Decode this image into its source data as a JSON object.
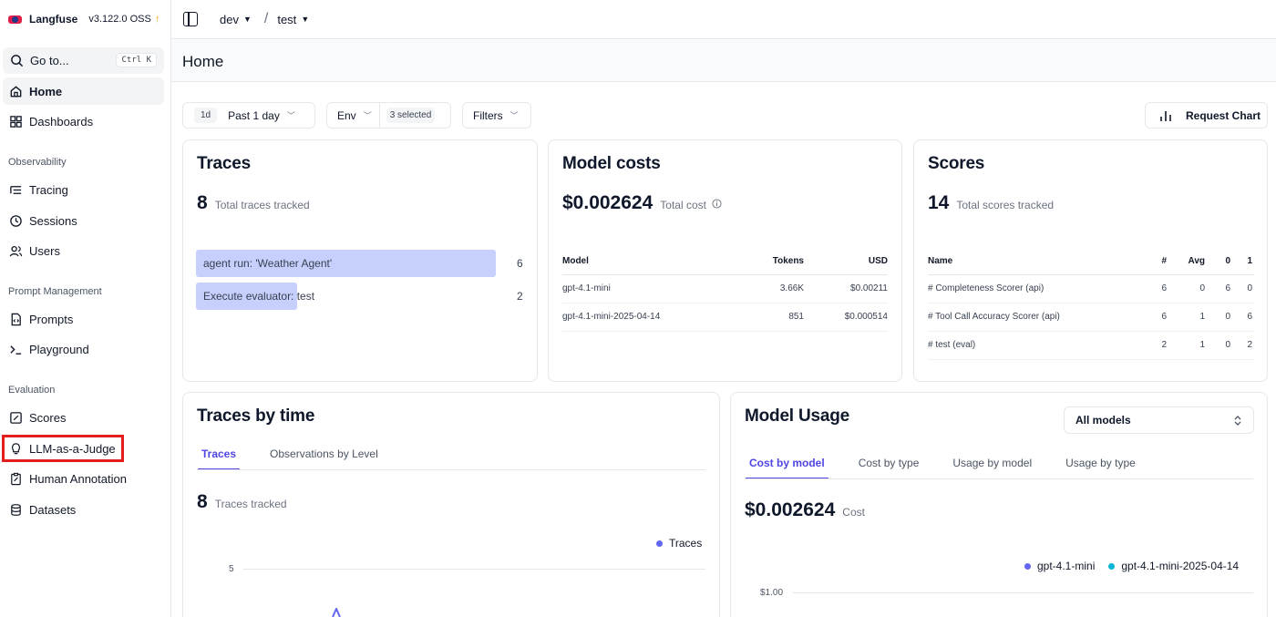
{
  "brand": {
    "name": "Langfuse",
    "version": "v3.122.0 OSS",
    "update_arrow": "↑"
  },
  "goto": {
    "label": "Go to...",
    "shortcut": "Ctrl K"
  },
  "sidebar": {
    "top_items": [
      {
        "label": "Home",
        "icon": "home-icon",
        "active": true
      },
      {
        "label": "Dashboards",
        "icon": "dashboard-icon"
      }
    ],
    "sections": [
      {
        "title": "Observability",
        "items": [
          {
            "label": "Tracing",
            "icon": "tracing-icon"
          },
          {
            "label": "Sessions",
            "icon": "clock-icon"
          },
          {
            "label": "Users",
            "icon": "users-icon"
          }
        ]
      },
      {
        "title": "Prompt Management",
        "items": [
          {
            "label": "Prompts",
            "icon": "file-code-icon"
          },
          {
            "label": "Playground",
            "icon": "terminal-icon"
          }
        ]
      },
      {
        "title": "Evaluation",
        "items": [
          {
            "label": "Scores",
            "icon": "score-icon"
          },
          {
            "label": "LLM-as-a-Judge",
            "icon": "lightbulb-icon"
          },
          {
            "label": "Human Annotation",
            "icon": "annotation-icon"
          },
          {
            "label": "Datasets",
            "icon": "database-icon"
          }
        ]
      }
    ]
  },
  "topbar": {
    "org": "dev",
    "project": "test",
    "separator": "/"
  },
  "page": {
    "title": "Home"
  },
  "filters": {
    "date_pill": "1d",
    "date_label": "Past 1 day",
    "env_label": "Env",
    "env_selected": "3 selected",
    "filters_label": "Filters",
    "request_chart_label": "Request Chart"
  },
  "traces_card": {
    "title": "Traces",
    "total": "8",
    "total_label": "Total traces tracked",
    "rows": [
      {
        "name": "agent run: 'Weather Agent'",
        "count": "6",
        "fraction": 0.867
      },
      {
        "name": "Execute evaluator: test",
        "count": "2",
        "fraction": 0.293
      }
    ]
  },
  "costs_card": {
    "title": "Model costs",
    "total": "$0.002624",
    "total_label": "Total cost",
    "headers": {
      "model": "Model",
      "tokens": "Tokens",
      "usd": "USD"
    },
    "rows": [
      {
        "model": "gpt-4.1-mini",
        "tokens": "3.66K",
        "usd": "$0.00211"
      },
      {
        "model": "gpt-4.1-mini-2025-04-14",
        "tokens": "851",
        "usd": "$0.000514"
      }
    ]
  },
  "scores_card": {
    "title": "Scores",
    "total": "14",
    "total_label": "Total scores tracked",
    "headers": {
      "name": "Name",
      "count": "#",
      "avg": "Avg",
      "zero": "0",
      "one": "1"
    },
    "rows": [
      {
        "name": "# Completeness Scorer (api)",
        "count": "6",
        "avg": "0",
        "zero": "6",
        "one": "0"
      },
      {
        "name": "# Tool Call Accuracy Scorer (api)",
        "count": "6",
        "avg": "1",
        "zero": "0",
        "one": "6"
      },
      {
        "name": "# test (eval)",
        "count": "2",
        "avg": "1",
        "zero": "0",
        "one": "2"
      }
    ]
  },
  "traces_time_card": {
    "title": "Traces by time",
    "tabs": [
      "Traces",
      "Observations by Level"
    ],
    "total": "8",
    "total_label": "Traces tracked",
    "legend": "Traces",
    "y_tick": "5",
    "series_color": "#6366f1"
  },
  "usage_card": {
    "title": "Model Usage",
    "select_value": "All models",
    "tabs": [
      "Cost by model",
      "Cost by type",
      "Usage by model",
      "Usage by type"
    ],
    "total": "$0.002624",
    "total_label": "Cost",
    "legend": [
      {
        "name": "gpt-4.1-mini",
        "color": "#6366f1"
      },
      {
        "name": "gpt-4.1-mini-2025-04-14",
        "color": "#06b6d4"
      }
    ],
    "y_tick": "$1.00"
  }
}
